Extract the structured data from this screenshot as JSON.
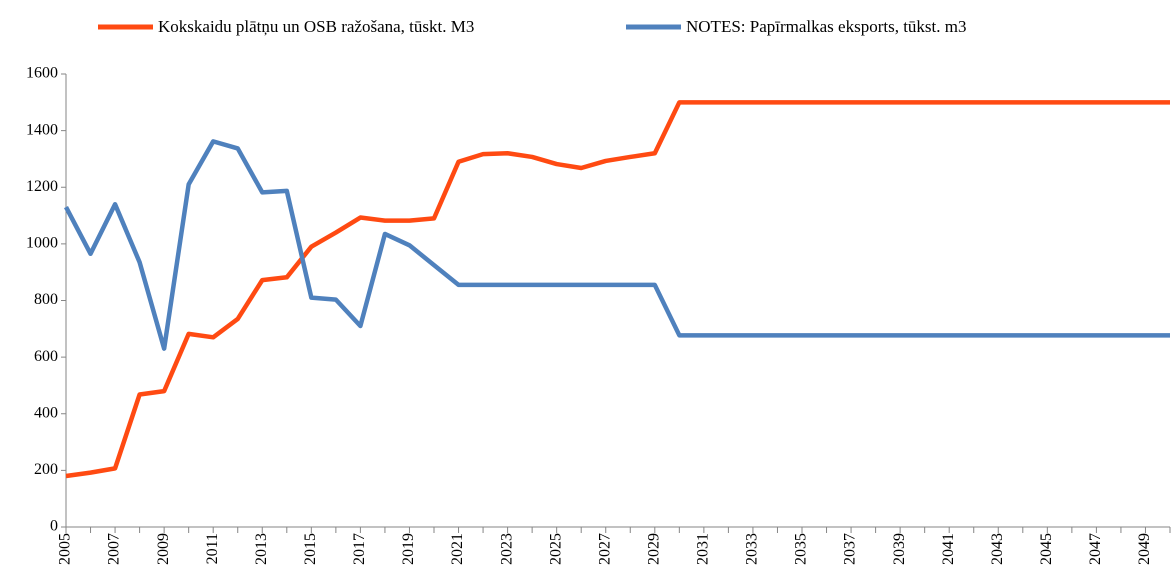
{
  "chart_data": {
    "type": "line",
    "categories": [
      "2005",
      null,
      "2007",
      null,
      "2009",
      null,
      "2011",
      null,
      "2013",
      null,
      "2015",
      null,
      "2017",
      null,
      "2019",
      null,
      "2021",
      null,
      "2023",
      null,
      "2025",
      null,
      "2027",
      null,
      "2029",
      null,
      "2031",
      null,
      "2033",
      null,
      "2035",
      null,
      "2037",
      null,
      "2039",
      null,
      "2041",
      null,
      "2043",
      null,
      "2045",
      null,
      "2047",
      null,
      "2049",
      null
    ],
    "series": [
      {
        "name": "Kokskaidu plātņu un OSB ražošana, tūskt. M3",
        "color": "#ff4a12",
        "values": [
          180,
          192,
          207,
          468,
          480,
          682,
          670,
          735,
          872,
          882,
          990,
          1040,
          1093,
          1082,
          1082,
          1090,
          1290,
          1317,
          1320,
          1307,
          1282,
          1268,
          1293,
          1307,
          1320,
          1500,
          1500,
          1500,
          1500,
          1500,
          1500,
          1500,
          1500,
          1500,
          1500,
          1500,
          1500,
          1500,
          1500,
          1500,
          1500,
          1500,
          1500,
          1500,
          1500,
          1500
        ]
      },
      {
        "name": "NOTES: Papīrmalkas eksports, tūkst. m3",
        "color": "#4f81bd",
        "values": [
          1130,
          965,
          1140,
          935,
          630,
          1210,
          1362,
          1337,
          1182,
          1187,
          810,
          803,
          710,
          1035,
          995,
          925,
          855,
          855,
          855,
          855,
          855,
          855,
          855,
          855,
          855,
          677,
          677,
          677,
          677,
          677,
          677,
          677,
          677,
          677,
          677,
          677,
          677,
          677,
          677,
          677,
          677,
          677,
          677,
          677,
          677,
          677
        ]
      }
    ],
    "ylim": [
      0,
      1600
    ],
    "yticks": [
      0,
      200,
      400,
      600,
      800,
      1000,
      1200,
      1400,
      1600
    ],
    "grid": false,
    "legend": "top"
  }
}
